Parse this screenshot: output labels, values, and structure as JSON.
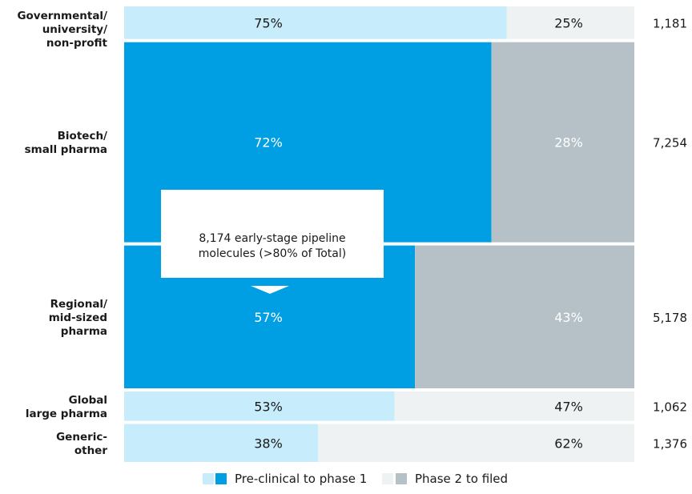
{
  "chart_data": {
    "type": "bar",
    "categories": [
      [
        "Governmental/",
        "university/",
        "non-profit"
      ],
      [
        "Biotech/",
        "small pharma"
      ],
      [
        "Regional/",
        "mid-sized",
        "pharma"
      ],
      [
        "Global",
        "large pharma"
      ],
      [
        "Generic-",
        "other"
      ]
    ],
    "series": [
      {
        "name": "Pre-clinical to phase 1",
        "values": [
          75,
          72,
          57,
          53,
          38
        ],
        "labels": [
          "75%",
          "72%",
          "57%",
          "53%",
          "38%"
        ]
      },
      {
        "name": "Phase 2 to filed",
        "values": [
          25,
          28,
          43,
          47,
          62
        ],
        "labels": [
          "25%",
          "28%",
          "43%",
          "47%",
          "62%"
        ]
      }
    ],
    "totals": [
      1181,
      7254,
      5178,
      1062,
      1376
    ],
    "total_labels": [
      "1,181",
      "7,254",
      "5,178",
      "1,062",
      "1,376"
    ],
    "highlighted": [
      false,
      true,
      true,
      false,
      false
    ],
    "callout": {
      "lines": [
        "8,174 early-stage pipeline",
        "molecules (>80% of Total)"
      ]
    },
    "colors": {
      "pre_clinical_light": "#c7ecfb",
      "pre_clinical_dark": "#009fe3",
      "phase2_light": "#eef2f3",
      "phase2_dark": "#b5c1c7",
      "label_on_dark": "#ffffff",
      "label_on_light": "#1a1a1a"
    },
    "legend": {
      "position": "bottom",
      "items": [
        {
          "label": "Pre-clinical to phase 1",
          "colors": [
            "#c7ecfb",
            "#009fe3"
          ]
        },
        {
          "label": "Phase 2 to filed",
          "colors": [
            "#eef2f3",
            "#b5c1c7"
          ]
        }
      ]
    }
  }
}
